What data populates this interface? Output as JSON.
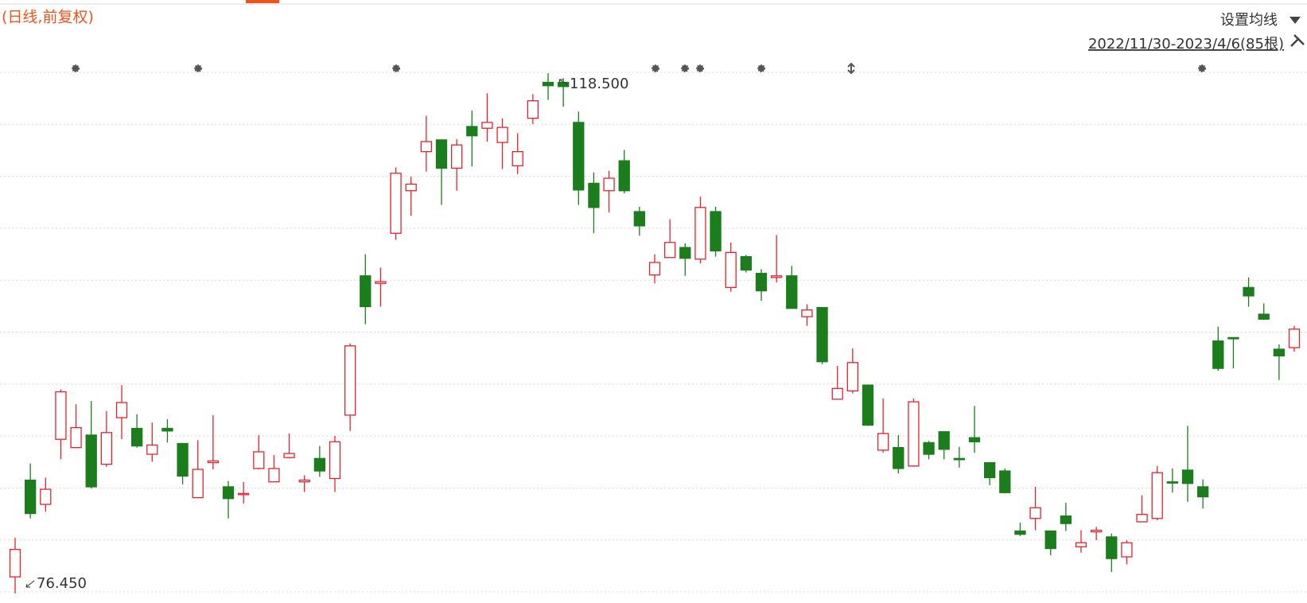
{
  "chart_data": {
    "type": "candlestick",
    "title": "(日线,前复权)",
    "toolbar": {
      "ma_setting": "设置均线",
      "range": "2022/11/30-2023/4/6(85根)"
    },
    "high_label": "118.500",
    "low_label": "76.450",
    "up_color": "#e8222d",
    "down_color": "#1b7d1b",
    "grid": true,
    "series": {
      "open": [
        77.79,
        85.61,
        83.65,
        88.91,
        88.24,
        89.25,
        86.89,
        90.66,
        89.79,
        87.7,
        89.79,
        88.57,
        84.19,
        87.02,
        85.07,
        84.46,
        86.55,
        85.47,
        87.43,
        85.47,
        87.36,
        85.74,
        90.86,
        102.12,
        101.51,
        105.56,
        109.0,
        112.16,
        113.11,
        110.82,
        114.19,
        114.05,
        112.9,
        111.02,
        114.86,
        117.76,
        117.76,
        114.52,
        109.6,
        109.0,
        111.42,
        107.31,
        102.19,
        103.6,
        104.41,
        103.47,
        107.31,
        101.18,
        103.67,
        102.32,
        101.99,
        102.12,
        98.82,
        99.56,
        92.15,
        92.82,
        93.29,
        88.03,
        88.24,
        86.75,
        88.64,
        89.52,
        87.36,
        89.04,
        87.02,
        86.35,
        81.5,
        82.51,
        81.5,
        82.71,
        80.22,
        81.43,
        81.02,
        79.41,
        82.24,
        82.51,
        85.47,
        86.42,
        85.07,
        96.86,
        97.13,
        101.18,
        99.02,
        96.19,
        96.32
      ],
      "high": [
        80.96,
        86.96,
        85.81,
        92.95,
        91.74,
        92.01,
        91.2,
        93.29,
        90.93,
        90.26,
        90.53,
        88.57,
        88.84,
        90.86,
        85.54,
        85.47,
        89.25,
        87.63,
        89.38,
        86.01,
        88.37,
        89.18,
        96.66,
        103.87,
        102.79,
        110.88,
        110.14,
        115.06,
        113.11,
        113.17,
        115.47,
        116.88,
        114.86,
        113.65,
        116.81,
        118.5,
        118.09,
        115.4,
        110.48,
        110.61,
        112.3,
        107.71,
        103.87,
        106.7,
        104.75,
        108.52,
        107.71,
        104.82,
        103.81,
        102.66,
        105.42,
        102.93,
        99.83,
        99.56,
        94.84,
        96.26,
        93.29,
        92.21,
        89.25,
        92.21,
        88.78,
        89.52,
        88.3,
        91.61,
        87.02,
        86.55,
        82.17,
        85.07,
        81.5,
        83.79,
        81.56,
        81.83,
        81.29,
        80.75,
        84.39,
        86.75,
        86.55,
        89.99,
        85.67,
        98.01,
        97.13,
        101.99,
        99.9,
        96.59,
        98.08
      ],
      "low": [
        76.45,
        82.51,
        83.05,
        87.29,
        88.24,
        84.93,
        86.69,
        88.91,
        88.24,
        87.09,
        88.64,
        85.27,
        84.19,
        86.48,
        82.51,
        83.72,
        86.48,
        85.47,
        87.36,
        84.66,
        85.88,
        84.66,
        89.58,
        98.21,
        99.63,
        105.02,
        106.97,
        110.55,
        107.85,
        109.0,
        110.95,
        112.97,
        110.75,
        110.34,
        114.39,
        116.34,
        115.8,
        107.85,
        105.56,
        107.24,
        108.79,
        105.36,
        101.51,
        103.6,
        102.12,
        103.13,
        103.67,
        100.84,
        102.39,
        100.1,
        101.58,
        99.49,
        98.08,
        94.98,
        92.15,
        92.62,
        89.99,
        87.83,
        86.15,
        86.69,
        87.29,
        87.29,
        86.62,
        87.83,
        85.2,
        84.53,
        81.09,
        81.56,
        79.54,
        81.5,
        79.74,
        80.75,
        78.19,
        78.8,
        82.24,
        82.37,
        84.6,
        83.86,
        83.32,
        94.44,
        94.64,
        99.63,
        98.55,
        93.7,
        95.99
      ],
      "close": [
        80.01,
        82.91,
        84.87,
        92.75,
        89.85,
        85.07,
        89.45,
        91.88,
        88.37,
        88.44,
        89.58,
        85.94,
        86.48,
        87.16,
        84.12,
        84.53,
        87.9,
        86.55,
        87.76,
        85.61,
        86.35,
        88.71,
        96.46,
        99.63,
        101.65,
        110.41,
        109.53,
        112.97,
        110.82,
        112.7,
        113.44,
        114.52,
        114.12,
        112.16,
        116.27,
        117.49,
        117.42,
        109.06,
        107.65,
        110.01,
        109.0,
        106.16,
        103.2,
        104.82,
        103.54,
        107.65,
        104.14,
        104.01,
        102.59,
        100.91,
        102.12,
        99.49,
        99.36,
        95.18,
        93.02,
        95.11,
        90.06,
        89.38,
        86.55,
        91.94,
        87.7,
        88.1,
        87.29,
        88.71,
        85.81,
        84.6,
        81.23,
        83.38,
        80.08,
        82.1,
        80.55,
        81.56,
        79.27,
        80.55,
        82.84,
        86.21,
        85.41,
        85.34,
        84.26,
        94.64,
        97.07,
        100.5,
        98.62,
        95.65,
        97.81
      ]
    }
  }
}
